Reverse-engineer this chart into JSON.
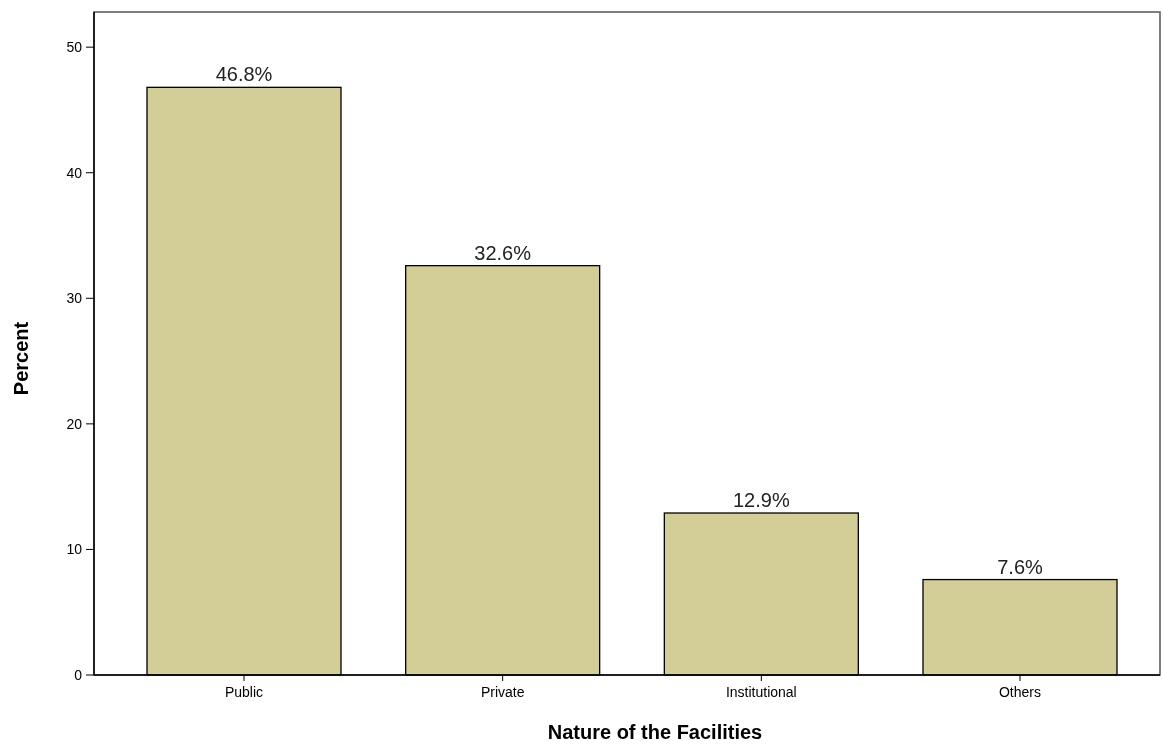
{
  "chart_data": {
    "type": "bar",
    "xlabel": "Nature of the Facilities",
    "ylabel": "Percent",
    "categories": [
      "Public",
      "Private",
      "Institutional",
      "Others"
    ],
    "values": [
      46.8,
      32.6,
      12.9,
      7.6
    ],
    "value_labels": [
      "46.8%",
      "32.6%",
      "12.9%",
      "7.6%"
    ],
    "color": "#d3ce98",
    "ylim": [
      0,
      52.8
    ],
    "yticks": [
      0,
      10,
      20,
      30,
      40,
      50
    ],
    "grid": false
  }
}
